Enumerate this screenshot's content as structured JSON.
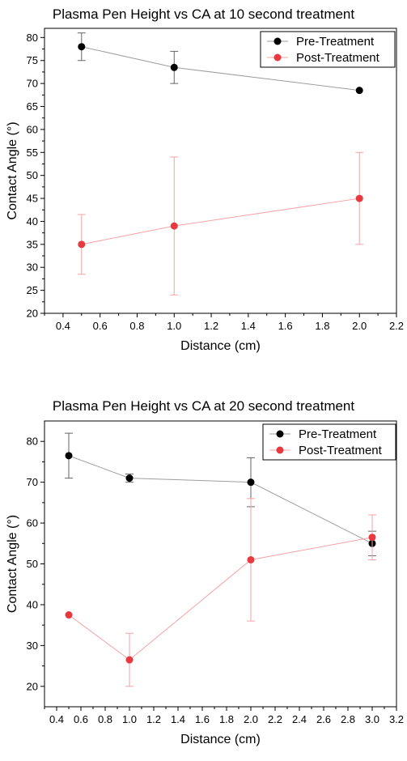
{
  "chart_data": [
    {
      "type": "line",
      "title": "Plasma Pen Height vs CA at 10 second treatment",
      "xlabel": "Distance (cm)",
      "ylabel": "Contact Angle (°)",
      "xlim": [
        0.3,
        2.2
      ],
      "ylim": [
        20,
        82
      ],
      "xticks": [
        "0.4",
        "0.6",
        "0.8",
        "1.0",
        "1.2",
        "1.4",
        "1.6",
        "1.8",
        "2.0",
        "2.2"
      ],
      "yticks": [
        "20",
        "25",
        "30",
        "35",
        "40",
        "45",
        "50",
        "55",
        "60",
        "65",
        "70",
        "75",
        "80"
      ],
      "grid": false,
      "legend_position": "top-right",
      "series": [
        {
          "name": "Pre-Treatment",
          "color": "#000000",
          "line_color": "#9e9e9e",
          "x": [
            0.5,
            1.0,
            2.0
          ],
          "y": [
            78,
            73.5,
            68.5
          ],
          "err_low": [
            75,
            70,
            68.5
          ],
          "err_high": [
            81,
            77,
            68.5
          ]
        },
        {
          "name": "Post-Treatment",
          "color": "#e8393f",
          "line_color": "#f4a3a6",
          "x": [
            0.5,
            1.0,
            2.0
          ],
          "y": [
            35,
            39,
            45
          ],
          "err_low": [
            28.5,
            24,
            35
          ],
          "err_high": [
            41.5,
            54,
            55
          ]
        }
      ]
    },
    {
      "type": "line",
      "title": "Plasma Pen Height vs CA at 20 second treatment",
      "xlabel": "Distance (cm)",
      "ylabel": "Contact Angle (°)",
      "xlim": [
        0.3,
        3.2
      ],
      "ylim": [
        15,
        85
      ],
      "xticks": [
        "0.4",
        "0.6",
        "0.8",
        "1.0",
        "1.2",
        "1.4",
        "1.6",
        "1.8",
        "2.0",
        "2.2",
        "2.4",
        "2.6",
        "2.8",
        "3.0",
        "3.2"
      ],
      "yticks": [
        "20",
        "30",
        "40",
        "50",
        "60",
        "70",
        "80"
      ],
      "grid": false,
      "legend_position": "top-right",
      "series": [
        {
          "name": "Pre-Treatment",
          "color": "#000000",
          "line_color": "#9e9e9e",
          "x": [
            0.5,
            1.0,
            2.0,
            3.0
          ],
          "y": [
            76.5,
            71,
            70,
            55
          ],
          "err_low": [
            71,
            70,
            64,
            52
          ],
          "err_high": [
            82,
            72,
            76,
            58
          ]
        },
        {
          "name": "Post-Treatment",
          "color": "#e8393f",
          "line_color": "#f4a3a6",
          "x": [
            0.5,
            1.0,
            2.0,
            3.0
          ],
          "y": [
            37.5,
            26.5,
            51,
            56.5
          ],
          "err_low": [
            37.5,
            20,
            36,
            51
          ],
          "err_high": [
            37.5,
            33,
            66,
            62
          ]
        }
      ]
    }
  ]
}
